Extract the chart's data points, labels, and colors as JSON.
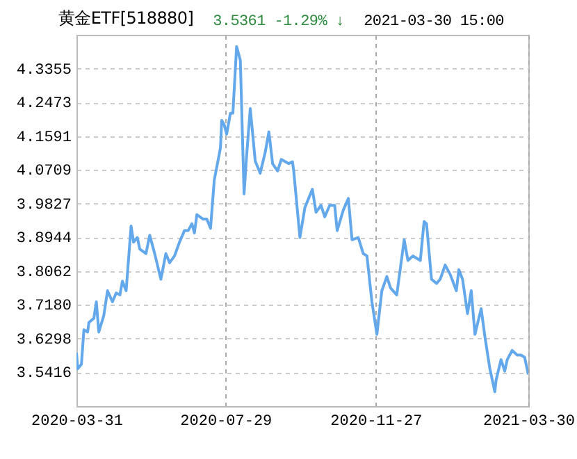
{
  "chart_data": {
    "type": "line",
    "title": "黄金ETF[518880]",
    "annotations": [
      "3.5361 -1.29% ↓",
      "2021-03-30 15:00"
    ],
    "x": [
      "2020-03-31",
      "2020-04-01",
      "2020-04-04",
      "2020-04-06",
      "2020-04-09",
      "2020-04-10",
      "2020-04-14",
      "2020-04-16",
      "2020-04-18",
      "2020-04-22",
      "2020-04-25",
      "2020-04-29",
      "2020-05-02",
      "2020-05-05",
      "2020-05-07",
      "2020-05-10",
      "2020-05-14",
      "2020-05-16",
      "2020-05-19",
      "2020-05-21",
      "2020-05-26",
      "2020-05-29",
      "2020-06-02",
      "2020-06-07",
      "2020-06-11",
      "2020-06-14",
      "2020-06-18",
      "2020-06-22",
      "2020-06-26",
      "2020-06-29",
      "2020-07-02",
      "2020-07-04",
      "2020-07-06",
      "2020-07-11",
      "2020-07-14",
      "2020-07-17",
      "2020-07-20",
      "2020-07-25",
      "2020-07-26",
      "2020-07-28",
      "2020-07-30",
      "2020-08-02",
      "2020-08-04",
      "2020-08-07",
      "2020-08-10",
      "2020-08-13",
      "2020-08-15",
      "2020-08-18",
      "2020-08-22",
      "2020-08-26",
      "2020-08-30",
      "2020-09-02",
      "2020-09-05",
      "2020-09-09",
      "2020-09-12",
      "2020-09-18",
      "2020-09-21",
      "2020-09-22",
      "2020-09-27",
      "2020-10-01",
      "2020-10-07",
      "2020-10-10",
      "2020-10-14",
      "2020-10-17",
      "2020-10-21",
      "2020-10-25",
      "2020-10-27",
      "2020-11-01",
      "2020-11-05",
      "2020-11-08",
      "2020-11-13",
      "2020-11-17",
      "2020-11-20",
      "2020-11-24",
      "2020-11-28",
      "2020-12-02",
      "2020-12-06",
      "2020-12-09",
      "2020-12-14",
      "2020-12-17",
      "2020-12-20",
      "2020-12-23",
      "2020-12-27",
      "2021-01-02",
      "2021-01-05",
      "2021-01-07",
      "2021-01-11",
      "2021-01-15",
      "2021-01-18",
      "2021-01-22",
      "2021-01-26",
      "2021-01-31",
      "2021-02-02",
      "2021-02-05",
      "2021-02-09",
      "2021-02-12",
      "2021-02-15",
      "2021-02-20",
      "2021-02-23",
      "2021-02-27",
      "2021-03-03",
      "2021-03-04",
      "2021-03-08",
      "2021-03-11",
      "2021-03-13",
      "2021-03-17",
      "2021-03-21",
      "2021-03-24",
      "2021-03-27",
      "2021-03-30"
    ],
    "series": [
      {
        "color": "#64a8ec",
        "values": [
          3.593,
          3.551,
          3.563,
          3.653,
          3.647,
          3.672,
          3.683,
          3.726,
          3.647,
          3.69,
          3.755,
          3.726,
          3.749,
          3.744,
          3.78,
          3.755,
          3.924,
          3.882,
          3.894,
          3.864,
          3.852,
          3.9,
          3.852,
          3.785,
          3.852,
          3.828,
          3.846,
          3.882,
          3.912,
          3.912,
          3.93,
          3.906,
          3.954,
          3.942,
          3.942,
          3.918,
          4.044,
          4.128,
          4.2,
          4.189,
          4.164,
          4.219,
          4.219,
          4.393,
          4.357,
          4.008,
          4.105,
          4.231,
          4.094,
          4.062,
          4.116,
          4.17,
          4.087,
          4.068,
          4.098,
          4.087,
          4.092,
          4.068,
          3.894,
          3.972,
          4.02,
          3.96,
          3.978,
          3.948,
          3.978,
          3.978,
          3.912,
          3.966,
          3.996,
          3.888,
          3.894,
          3.852,
          3.846,
          3.726,
          3.641,
          3.755,
          3.792,
          3.762,
          3.744,
          3.816,
          3.888,
          3.834,
          3.846,
          3.834,
          3.936,
          3.93,
          3.785,
          3.774,
          3.785,
          3.822,
          3.798,
          3.755,
          3.81,
          3.785,
          3.695,
          3.755,
          3.641,
          3.708,
          3.635,
          3.551,
          3.491,
          3.521,
          3.575,
          3.545,
          3.575,
          3.599,
          3.587,
          3.587,
          3.581,
          3.536
        ]
      }
    ],
    "xlim": [
      "2020-03-31",
      "2021-03-30"
    ],
    "xticks": [
      "2020-03-31",
      "2020-07-29",
      "2020-11-27",
      "2021-03-30"
    ],
    "ylim": [
      3.4534,
      4.4237
    ],
    "yticks": [
      3.5416,
      3.6298,
      {
        "value": 3.718,
        "label": "3.7180"
      },
      3.8062,
      3.8944,
      3.9827,
      4.0709,
      4.1591,
      4.2473,
      4.3355
    ],
    "grid": true,
    "line_style": "solid",
    "marker": "none"
  }
}
